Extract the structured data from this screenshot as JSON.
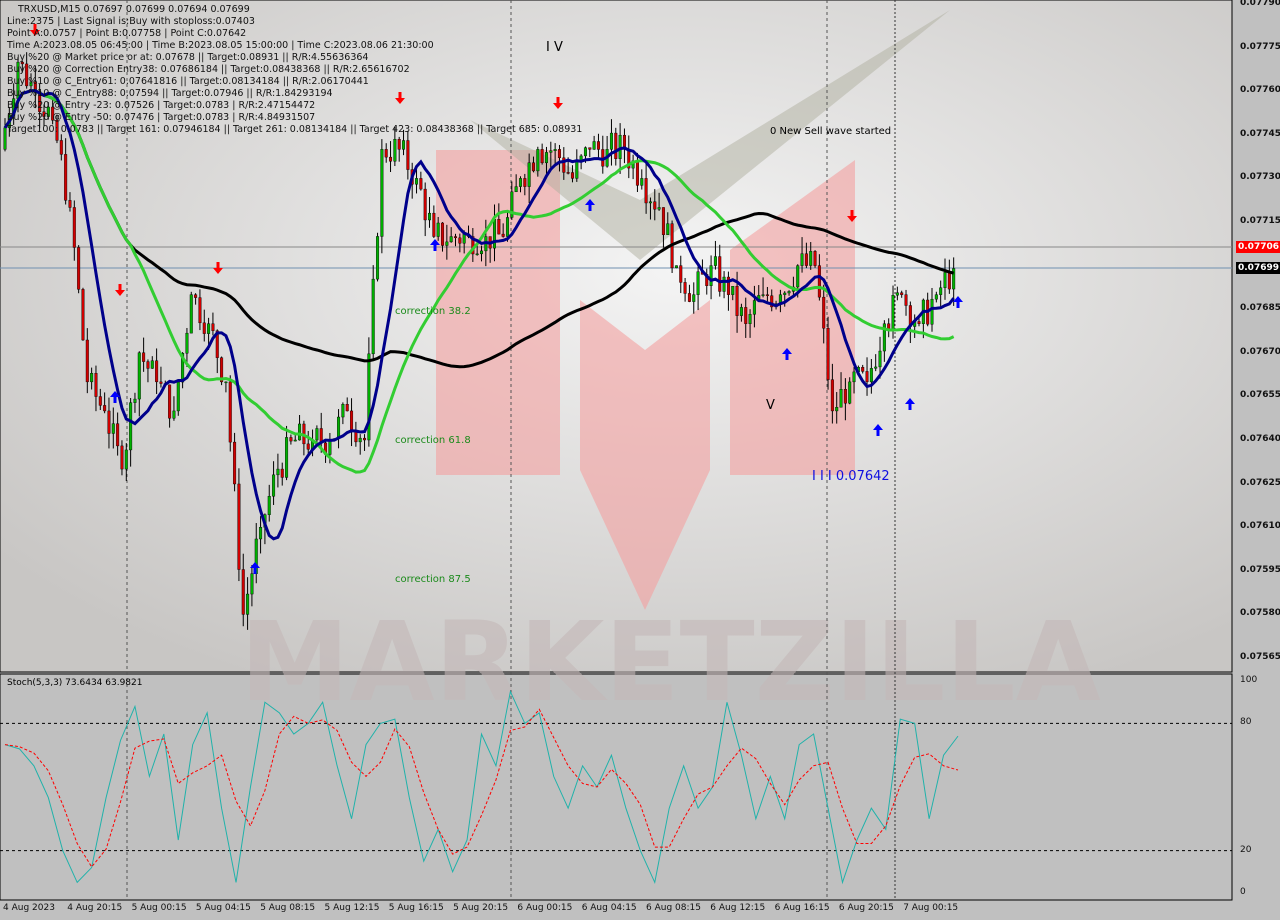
{
  "symbol_line": "TRXUSD,M15  0.07697 0.07699 0.07694 0.07699",
  "info_lines": [
    "Line:2375 | Last Signal is:Buy with stoploss:0.07403",
    "Point A:0.0757 | Point B:0.07758 | Point C:0.07642",
    "Time A:2023.08.05 06:45:00 | Time B:2023.08.05 15:00:00 | Time C:2023.08.06 21:30:00",
    "Buy %20 @ Market price or at: 0.07678 || Target:0.08931 || R/R:4.55636364",
    "Buy %20 @ Correction Entry38: 0.07686184 || Target:0.08438368 || R/R:2.65616702",
    "Buy %10 @ C_Entry61: 0.07641816 || Target:0.08134184 || R/R:2.06170441",
    "Buy %10 @ C_Entry88: 0.07594 || Target:0.07946 || R/R:1.84293194",
    "Buy %20 @ Entry -23: 0.07526 | Target:0.0783 | R/R:2.47154472",
    "Buy %20 @ Entry -50: 0.07476 | Target:0.0783 | R/R:4.84931507",
    "Target100: 0.0783 || Target 161: 0.07946184 || Target 261: 0.08134184 || Target 423: 0.08438368 || Target 685: 0.08931"
  ],
  "annotations": {
    "wave_iv": "I V",
    "new_sell": "0 New Sell wave started",
    "corr38": "correction 38.2",
    "corr61": "correction 61.8",
    "corr87": "correction 87.5",
    "wave_v": "V",
    "wave_iii": "I I I 0.07642"
  },
  "watermark": "MARKETZILLA",
  "colors": {
    "bull": "#00b000",
    "bear": "#d00000",
    "ma_fast": "#00008b",
    "ma_mid": "#32cd32",
    "ma_slow": "#000000",
    "stoch_k": "#20b2aa",
    "stoch_d": "#ff0000",
    "red_line": "#ff0000"
  },
  "stoch_label": "Stoch(5,3,3) 73.6434 63.9821",
  "chart_data": [
    {
      "type": "candlestick",
      "ylim": [
        0.07555,
        0.07792
      ],
      "yticks": [
        "0.07790",
        "0.07775",
        "0.07760",
        "0.07745",
        "0.07730",
        "0.07715",
        "0.07685",
        "0.07670",
        "0.07655",
        "0.07640",
        "0.07625",
        "0.07610",
        "0.07595",
        "0.07580",
        "0.07565"
      ],
      "xticks": [
        "4 Aug 2023",
        "4 Aug 20:15",
        "5 Aug 00:15",
        "5 Aug 04:15",
        "5 Aug 08:15",
        "5 Aug 12:15",
        "5 Aug 16:15",
        "5 Aug 20:15",
        "6 Aug 00:15",
        "6 Aug 04:15",
        "6 Aug 08:15",
        "6 Aug 12:15",
        "6 Aug 16:15",
        "6 Aug 20:15",
        "7 Aug 00:15"
      ],
      "price_tags": {
        "ask": "0.07706",
        "bid": "0.07699"
      },
      "closes": [
        0.0774,
        0.0777,
        0.0776,
        0.0775,
        0.0772,
        0.0766,
        0.0765,
        0.0763,
        0.0767,
        0.0766,
        0.0765,
        0.0769,
        0.0768,
        0.0766,
        0.0758,
        0.0761,
        0.0763,
        0.0764,
        0.0764,
        0.0764,
        0.0765,
        0.0764,
        0.0774,
        0.0774,
        0.0773,
        0.0771,
        0.0771,
        0.0771,
        0.0771,
        0.0771,
        0.0773,
        0.0774,
        0.0774,
        0.0773,
        0.0774,
        0.0774,
        0.0774,
        0.0773,
        0.0772,
        0.077,
        0.0769,
        0.077,
        0.0769,
        0.0768,
        0.0769,
        0.0769,
        0.077,
        0.077,
        0.0765,
        0.0766,
        0.0766,
        0.0768,
        0.0769,
        0.0768,
        0.0769,
        0.07699
      ]
    },
    {
      "type": "line",
      "name": "Stoch(5,3,3)",
      "ylim": [
        0,
        100
      ],
      "levels": [
        20,
        80
      ],
      "yticks": [
        "100",
        "80",
        "20",
        "0"
      ],
      "k": [
        70,
        68,
        60,
        45,
        20,
        5,
        12,
        45,
        72,
        88,
        55,
        75,
        25,
        70,
        85,
        40,
        5,
        50,
        90,
        85,
        75,
        80,
        90,
        60,
        35,
        70,
        80,
        82,
        45,
        15,
        30,
        10,
        25,
        75,
        60,
        95,
        80,
        85,
        55,
        40,
        60,
        50,
        65,
        40,
        20,
        5,
        40,
        60,
        40,
        50,
        90,
        65,
        35,
        55,
        35,
        70,
        75,
        40,
        5,
        25,
        40,
        30,
        82,
        80,
        35,
        65,
        74
      ]
    }
  ]
}
